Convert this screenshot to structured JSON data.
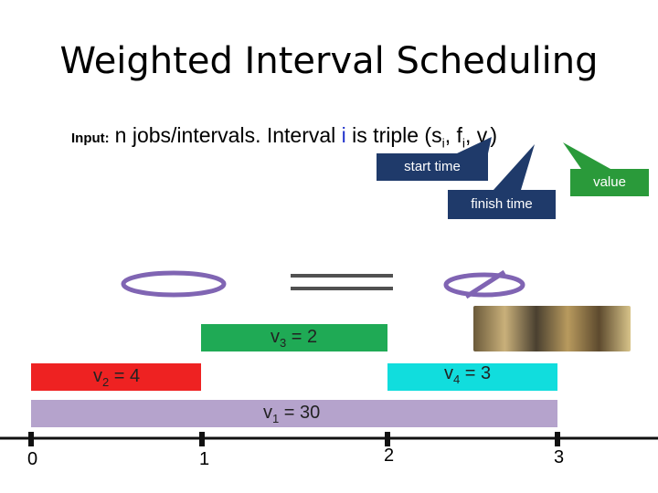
{
  "title": "Weighted Interval Scheduling",
  "input": {
    "label": "Input:",
    "n": "n",
    "text_a": " jobs/intervals. Interval ",
    "i": "i",
    "text_b": " is triple (",
    "s": "s",
    "sub_i": "i",
    "comma": ", ",
    "f": "f",
    "v": "v",
    "close": ")"
  },
  "callouts": {
    "start": "start time",
    "finish": "finish time",
    "value": "value"
  },
  "intervals": [
    {
      "name": "v",
      "sub": "3",
      "value": "2",
      "start": 1,
      "finish": 2
    },
    {
      "name": "v",
      "sub": "2",
      "value": "4",
      "start": 0,
      "finish": 1
    },
    {
      "name": "v",
      "sub": "4",
      "value": "3",
      "start": 2,
      "finish": 3
    },
    {
      "name": "v",
      "sub": "1",
      "value": "30",
      "start": 0,
      "finish": 3
    }
  ],
  "timeline": {
    "ticks": [
      "0",
      "1",
      "2",
      "3"
    ]
  },
  "colors": {
    "v3": "#1faa55",
    "v2": "#ee2222",
    "v4": "#11dddd",
    "v1": "#b5a3cc",
    "callout_dark": "#1f3a6a",
    "callout_green": "#2a9a3a"
  }
}
